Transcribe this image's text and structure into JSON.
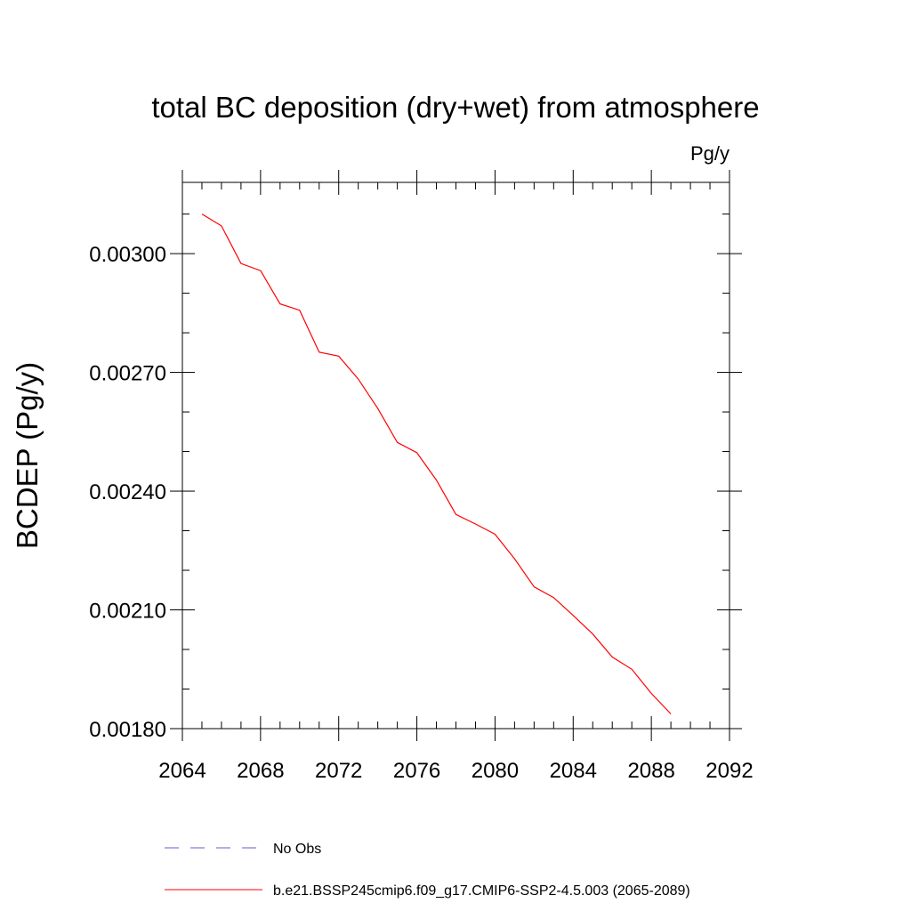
{
  "chart_data": {
    "type": "line",
    "title": "total BC deposition (dry+wet) from atmosphere",
    "units": "Pg/y",
    "ylabel": "BCDEP  (Pg/y)",
    "xlabel": "",
    "xlim": [
      2064,
      2092
    ],
    "ylim": [
      0.0018,
      0.00318
    ],
    "x_ticks": [
      2064,
      2068,
      2072,
      2076,
      2080,
      2084,
      2088,
      2092
    ],
    "x_tick_labels": [
      "2064",
      "2068",
      "2072",
      "2076",
      "2080",
      "2084",
      "2088",
      "2092"
    ],
    "y_ticks": [
      0.0018,
      0.0021,
      0.0024,
      0.0027,
      0.003
    ],
    "y_tick_labels": [
      "0.00180",
      "0.00210",
      "0.00240",
      "0.00270",
      "0.00300"
    ],
    "grid": false,
    "legend_position": "bottom",
    "series": [
      {
        "name": "No Obs",
        "color": "#6a5acd",
        "dash": "dashed",
        "x": [],
        "y": []
      },
      {
        "name": "b.e21.BSSP245cmip6.f09_g17.CMIP6-SSP2-4.5.003 (2065-2089)",
        "color": "#ff0000",
        "dash": "solid",
        "x": [
          2065,
          2066,
          2067,
          2068,
          2069,
          2070,
          2071,
          2072,
          2073,
          2074,
          2075,
          2076,
          2077,
          2078,
          2079,
          2080,
          2081,
          2082,
          2083,
          2084,
          2085,
          2086,
          2087,
          2088,
          2089
        ],
        "y": [
          0.0031,
          0.00307,
          0.002975,
          0.002957,
          0.002873,
          0.002857,
          0.002751,
          0.002741,
          0.002683,
          0.002609,
          0.002523,
          0.002497,
          0.002428,
          0.002341,
          0.002317,
          0.002291,
          0.002229,
          0.002158,
          0.002131,
          0.002086,
          0.002039,
          0.001981,
          0.00195,
          0.001889,
          0.001837
        ]
      }
    ]
  }
}
